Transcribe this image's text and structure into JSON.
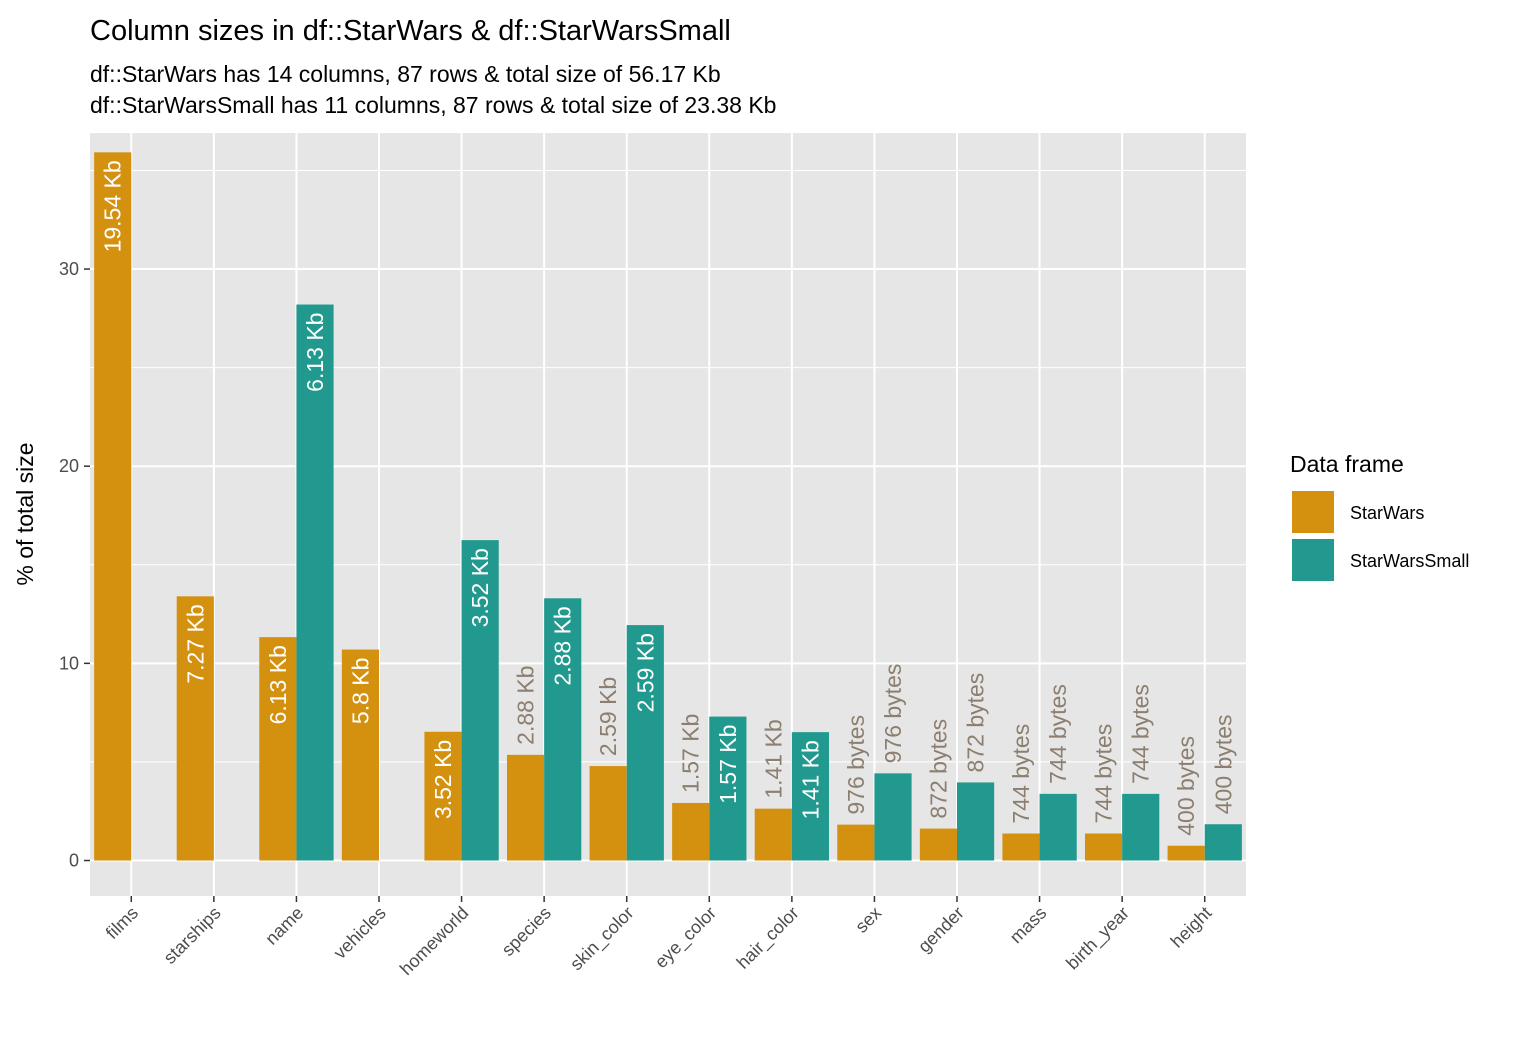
{
  "chart_data": {
    "type": "bar",
    "title": "Column sizes in df::StarWars & df::StarWarsSmall",
    "subtitle": [
      "df::StarWars has 14 columns, 87 rows & total size of 56.17 Kb",
      "df::StarWarsSmall has 11 columns, 87 rows & total size of 23.38 Kb"
    ],
    "xlabel": "",
    "ylabel": "% of total size",
    "ylim": [
      -1.8,
      36.9
    ],
    "yticks": [
      0,
      10,
      20,
      30
    ],
    "grid": true,
    "legend_placement": "right",
    "legend_title": "Data frame",
    "categories": [
      "films",
      "starships",
      "name",
      "vehicles",
      "homeworld",
      "species",
      "skin_color",
      "eye_color",
      "hair_color",
      "sex",
      "gender",
      "mass",
      "birth_year",
      "height"
    ],
    "series": [
      {
        "name": "StarWars",
        "color": "#d4910f",
        "values": [
          35.92,
          13.4,
          11.33,
          10.7,
          6.53,
          5.36,
          4.79,
          2.92,
          2.63,
          1.82,
          1.62,
          1.37,
          1.37,
          0.75
        ],
        "labels": [
          "19.54 Kb",
          "7.27 Kb",
          "6.13 Kb",
          "5.8 Kb",
          "3.52 Kb",
          "2.88 Kb",
          "2.59 Kb",
          "1.57 Kb",
          "1.41 Kb",
          "976 bytes",
          "872 bytes",
          "744 bytes",
          "744 bytes",
          "400 bytes"
        ]
      },
      {
        "name": "StarWarsSmall",
        "color": "#21998e",
        "values": [
          null,
          null,
          28.2,
          null,
          16.25,
          13.3,
          11.94,
          7.3,
          6.51,
          4.42,
          3.96,
          3.38,
          3.38,
          1.84
        ],
        "labels": [
          null,
          null,
          "6.13 Kb",
          null,
          "3.52 Kb",
          "2.88 Kb",
          "2.59 Kb",
          "1.57 Kb",
          "1.41 Kb",
          "976 bytes",
          "872 bytes",
          "744 bytes",
          "744 bytes",
          "400 bytes"
        ]
      }
    ],
    "colors": {
      "panel_background": "#e6e6e6",
      "grid": "#ffffff",
      "label_inside": "#ffffff",
      "label_outside": "#8c7f70"
    }
  }
}
